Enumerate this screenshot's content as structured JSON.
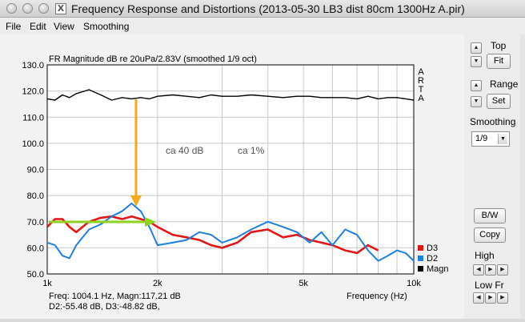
{
  "window": {
    "title": "Frequency Response and Distortions (2013-05-30 LB3 dist 80cm 1300Hz A.pir)",
    "app_icon": "X"
  },
  "menu": [
    {
      "label": "File"
    },
    {
      "label": "Edit"
    },
    {
      "label": "View"
    },
    {
      "label": "Smoothing"
    }
  ],
  "plot": {
    "title": "FR Magnitude dB re 20uPa/2.83V (smoothed 1/9 oct)",
    "watermark": "ARTA",
    "annotations": {
      "a1": "ca 40 dB",
      "a2": "ca 1%"
    },
    "x_axis_label": "Frequency (Hz)",
    "cursor": {
      "line1": "Freq: 1004.1 Hz, Magn:117.21 dB",
      "line2": "D2:-55.48 dB, D3:-48.82 dB,"
    },
    "legend": [
      {
        "label": "D3",
        "color": "#e41515"
      },
      {
        "label": "D2",
        "color": "#1d7fe0"
      },
      {
        "label": "Magn",
        "color": "#000000"
      }
    ],
    "colors": {
      "arrow": "#f4a91c",
      "green_arrow": "#8fd11f",
      "magn": "#000000",
      "d2": "#1d7fe0",
      "d3": "#e41515"
    }
  },
  "chart_data": {
    "type": "line",
    "title": "FR Magnitude dB re 20uPa/2.83V (smoothed 1/9 oct)",
    "xlabel": "Frequency (Hz)",
    "ylabel": "",
    "x_scale": "log",
    "xlim": [
      1000,
      10000
    ],
    "ylim": [
      50,
      130
    ],
    "y_ticks": [
      "50.0",
      "60.0",
      "70.0",
      "80.0",
      "90.0",
      "100.0",
      "110.0",
      "120.0",
      "130.0"
    ],
    "x_ticks": [
      "1k",
      "2k",
      "5k",
      "10k"
    ],
    "grid": true,
    "series": [
      {
        "name": "Magn",
        "x": [
          1000,
          1050,
          1100,
          1150,
          1200,
          1300,
          1400,
          1500,
          1600,
          1700,
          1800,
          1900,
          2000,
          2200,
          2400,
          2600,
          2800,
          3000,
          3300,
          3600,
          4000,
          4400,
          4800,
          5200,
          5600,
          6000,
          6500,
          7000,
          7500,
          8000,
          8500,
          9000,
          9500,
          10000
        ],
        "y": [
          117,
          116.5,
          118.5,
          117.5,
          119,
          120.5,
          118.5,
          116.5,
          117.5,
          117,
          117.5,
          117,
          118,
          118.5,
          118,
          117.5,
          118.5,
          118,
          118,
          118.5,
          118,
          117.5,
          118,
          118,
          117.5,
          117.5,
          117.5,
          117,
          118,
          117,
          117.5,
          117.5,
          117,
          116.5
        ]
      },
      {
        "name": "D2",
        "x": [
          1000,
          1050,
          1100,
          1150,
          1200,
          1300,
          1400,
          1500,
          1600,
          1700,
          1800,
          1900,
          2000,
          2200,
          2400,
          2600,
          2800,
          3000,
          3300,
          3600,
          4000,
          4400,
          4800,
          5200,
          5600,
          6000,
          6500,
          7000,
          7500,
          8000,
          8500,
          9000,
          9500,
          10000
        ],
        "y": [
          62,
          61,
          57,
          56,
          61,
          67,
          69,
          72,
          74,
          77,
          74,
          68,
          61,
          62,
          63,
          66,
          65,
          62,
          64,
          67,
          70,
          68,
          66,
          62,
          66,
          61,
          67,
          65,
          59,
          55,
          57,
          59,
          58,
          55
        ]
      },
      {
        "name": "D3",
        "x": [
          1000,
          1050,
          1100,
          1150,
          1200,
          1300,
          1400,
          1500,
          1600,
          1700,
          1800,
          1900,
          2000,
          2200,
          2400,
          2600,
          2800,
          3000,
          3300,
          3600,
          4000,
          4400,
          4800,
          5200,
          5600,
          6000,
          6500,
          7000,
          7500,
          8000
        ],
        "y": [
          68,
          71,
          71,
          68,
          66,
          70,
          71.5,
          72,
          71,
          72,
          71,
          70,
          68,
          65,
          64,
          63,
          61,
          60,
          62,
          66,
          67,
          64,
          65,
          63,
          62,
          61,
          59,
          58,
          61,
          59
        ]
      }
    ]
  },
  "panel": {
    "top_label": "Top",
    "fit_label": "Fit",
    "range_label": "Range",
    "set_label": "Set",
    "smoothing_label": "Smoothing",
    "smoothing_value": "1/9",
    "bw_label": "B/W",
    "copy_label": "Copy",
    "high_label": "High",
    "low_label": "Low Fr",
    "arrow_up": "▲",
    "arrow_down": "▼",
    "arrow_left": "◀",
    "arrow_right": "▶",
    "caret": "▼"
  }
}
